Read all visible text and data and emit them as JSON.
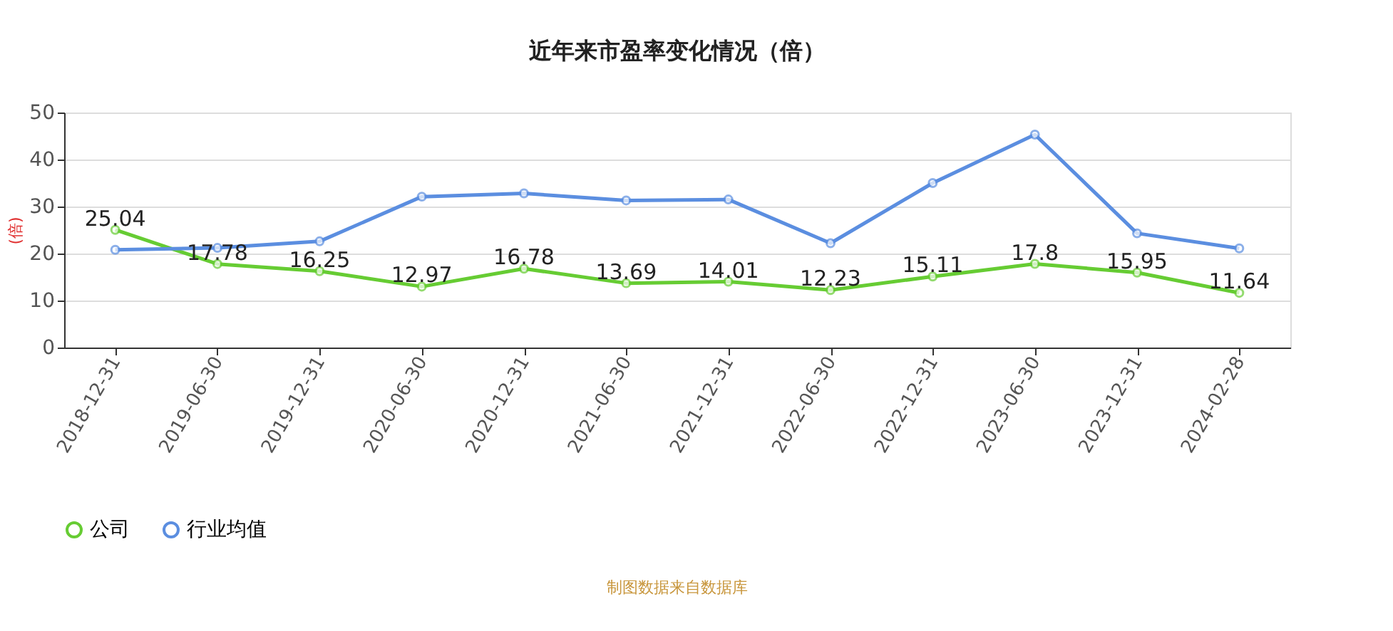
{
  "chart_data": {
    "type": "line",
    "title": "近年来市盈率变化情况（倍）",
    "ylabel": "(倍)",
    "categories": [
      "2018-12-31",
      "2019-06-30",
      "2019-12-31",
      "2020-06-30",
      "2020-12-31",
      "2021-06-30",
      "2021-12-31",
      "2022-06-30",
      "2022-12-31",
      "2023-06-30",
      "2023-12-31",
      "2024-02-28"
    ],
    "series": [
      {
        "name": "公司",
        "color": "#66cc33",
        "data_labels": true,
        "values": [
          25.04,
          17.78,
          16.25,
          12.97,
          16.78,
          13.69,
          14.01,
          12.23,
          15.11,
          17.8,
          15.95,
          11.64
        ]
      },
      {
        "name": "行业均值",
        "color": "#5b8ee0",
        "values": [
          20.8,
          21.2,
          22.6,
          32.1,
          32.8,
          31.3,
          31.5,
          22.2,
          35.0,
          45.3,
          24.3,
          21.1
        ]
      }
    ],
    "ylim": [
      0,
      50
    ],
    "yticks": [
      0,
      10,
      20,
      30,
      40,
      50
    ],
    "grid": "y",
    "legend": "bottom",
    "marker": "circle",
    "line_style": "solid",
    "annotations": [
      "制图数据来自数据库"
    ]
  }
}
